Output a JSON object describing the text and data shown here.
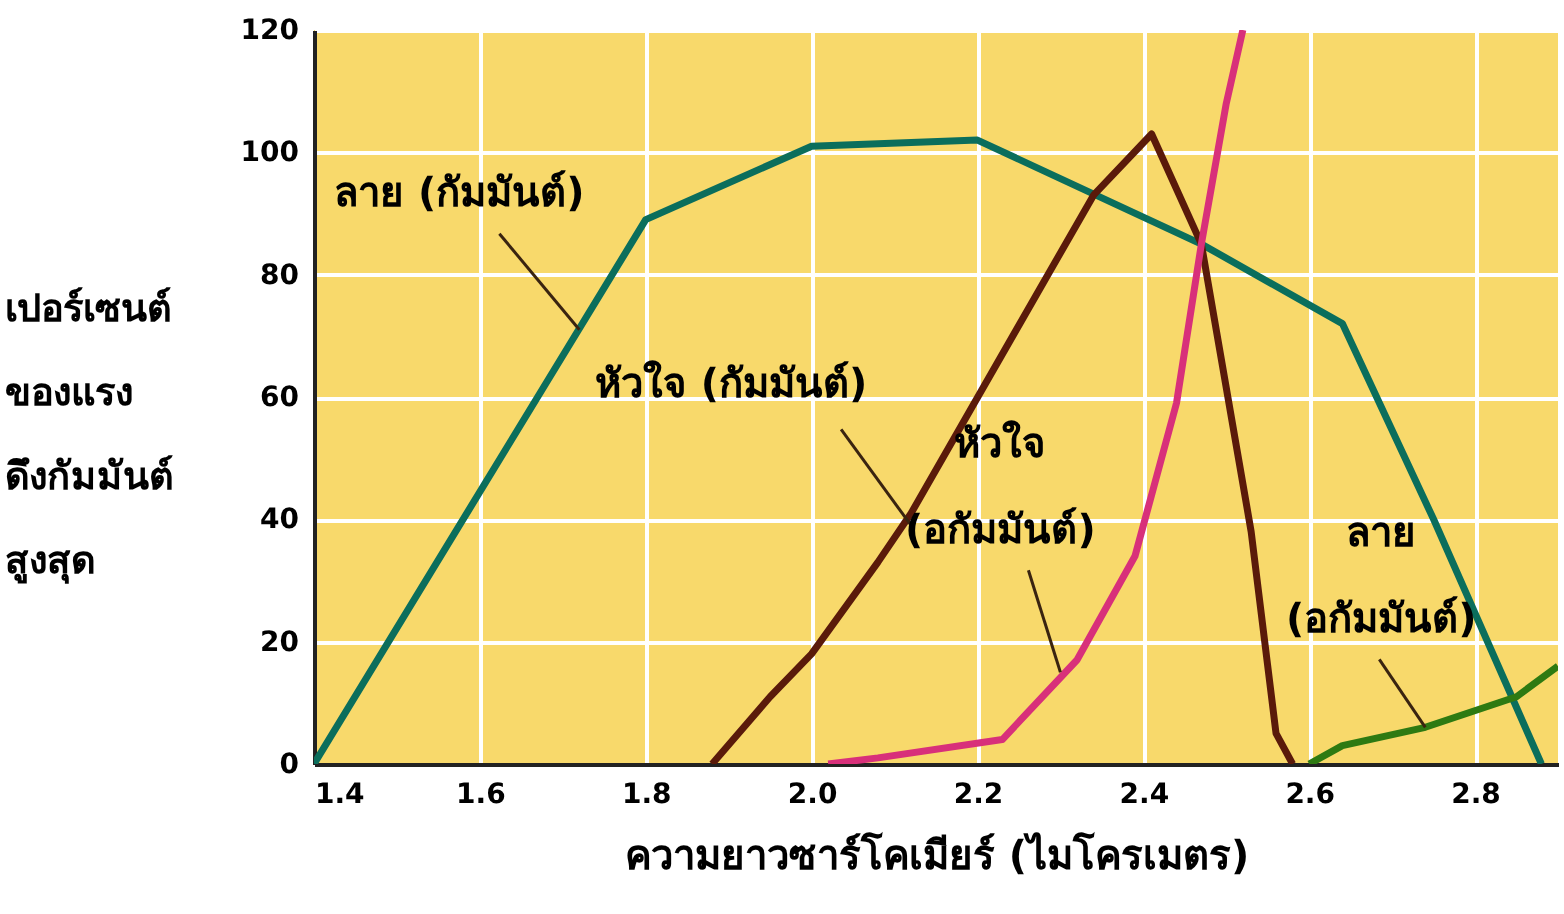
{
  "chart_data": {
    "type": "line",
    "xlabel": "ความยาวซาร์โคเมียร์ (ไมโครเมตร)",
    "ylabel": "เปอร์เซนต์\nของแรง\nดึงกัมมันต์\nสูงสุด",
    "xlim": [
      1.4,
      2.9
    ],
    "xticks": [
      1.4,
      1.6,
      1.8,
      {
        "value": 2,
        "label": "2.0"
      },
      2.2,
      2.4,
      2.6,
      2.8
    ],
    "ylim": [
      0,
      120
    ],
    "yticks": [
      0,
      20,
      40,
      60,
      80,
      100,
      120
    ],
    "grid": true,
    "marker": "none",
    "line_style": "solid",
    "series": [
      {
        "color": "#0b6e5c",
        "x": [
          1.4,
          1.8,
          2.0,
          2.2,
          2.47,
          2.64,
          2.75,
          2.88
        ],
        "values": [
          0,
          89,
          101,
          102,
          85,
          72,
          40,
          0
        ]
      },
      {
        "color": "#5a1a0a",
        "x": [
          1.88,
          1.95,
          2.0,
          2.08,
          2.12,
          2.34,
          2.41,
          2.47,
          2.53,
          2.56,
          2.58
        ],
        "values": [
          0,
          11,
          18,
          33,
          41,
          93,
          103,
          85,
          38,
          5,
          0
        ]
      },
      {
        "color": "#d8307a",
        "x": [
          2.02,
          2.08,
          2.23,
          2.32,
          2.39,
          2.44,
          2.47,
          2.5,
          2.52
        ],
        "values": [
          0,
          1,
          4,
          17,
          34,
          59,
          85,
          108,
          120
        ]
      },
      {
        "color": "#2e7a12",
        "x": [
          2.6,
          2.64,
          2.74,
          2.85,
          2.9
        ],
        "values": [
          0,
          3,
          6,
          11,
          16
        ]
      }
    ],
    "annotations": [
      {
        "text": "ลาย (กัมมันต์)",
        "x": 1.72,
        "y": 71
      },
      {
        "text": "หัวใจ (กัมมันต์)",
        "x": 2.12,
        "y": 39
      },
      {
        "text": "หัวใจ\n(อกัมมันต์)",
        "x": 2.3,
        "y": 15
      },
      {
        "text": "ลาย\n(อกัมมันต์)",
        "x": 2.74,
        "y": 6
      }
    ]
  }
}
